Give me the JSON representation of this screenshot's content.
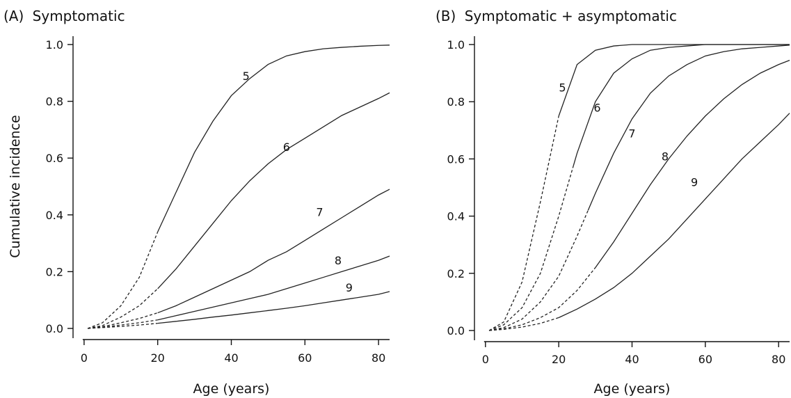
{
  "chart_data": [
    {
      "type": "line",
      "panel_label": "(A)",
      "title": "Symptomatic",
      "xlabel": "Age (years)",
      "ylabel": "Cumulative incidence",
      "xlim": [
        -3,
        83
      ],
      "ylim": [
        0,
        1
      ],
      "x_ticks": [
        0,
        20,
        40,
        60,
        80
      ],
      "y_ticks": [
        "0.0",
        "0.2",
        "0.4",
        "0.6",
        "0.8",
        "1.0"
      ],
      "grid": false,
      "legend": "none",
      "dashed_until_x": 20,
      "series": [
        {
          "name": "5",
          "label_at": [
            44,
            0.89
          ],
          "x": [
            1,
            5,
            10,
            15,
            20,
            25,
            30,
            35,
            40,
            45,
            50,
            55,
            60,
            65,
            70,
            75,
            80,
            83
          ],
          "y": [
            0.0,
            0.02,
            0.08,
            0.18,
            0.34,
            0.48,
            0.62,
            0.73,
            0.82,
            0.88,
            0.93,
            0.96,
            0.975,
            0.985,
            0.99,
            0.994,
            0.997,
            0.998
          ]
        },
        {
          "name": "6",
          "label_at": [
            55,
            0.64
          ],
          "x": [
            1,
            5,
            10,
            15,
            20,
            25,
            30,
            35,
            40,
            45,
            50,
            55,
            60,
            65,
            70,
            75,
            80,
            83
          ],
          "y": [
            0.0,
            0.01,
            0.04,
            0.08,
            0.14,
            0.21,
            0.29,
            0.37,
            0.45,
            0.52,
            0.58,
            0.63,
            0.67,
            0.71,
            0.75,
            0.78,
            0.81,
            0.83
          ]
        },
        {
          "name": "7",
          "label_at": [
            64,
            0.41
          ],
          "x": [
            1,
            5,
            10,
            15,
            20,
            25,
            30,
            35,
            40,
            45,
            50,
            55,
            60,
            65,
            70,
            75,
            80,
            83
          ],
          "y": [
            0.0,
            0.006,
            0.02,
            0.035,
            0.055,
            0.08,
            0.11,
            0.14,
            0.17,
            0.2,
            0.24,
            0.27,
            0.31,
            0.35,
            0.39,
            0.43,
            0.47,
            0.49
          ]
        },
        {
          "name": "8",
          "label_at": [
            69,
            0.24
          ],
          "x": [
            1,
            5,
            10,
            15,
            20,
            25,
            30,
            35,
            40,
            45,
            50,
            55,
            60,
            65,
            70,
            75,
            80,
            83
          ],
          "y": [
            0.0,
            0.004,
            0.012,
            0.02,
            0.03,
            0.045,
            0.06,
            0.075,
            0.09,
            0.105,
            0.12,
            0.14,
            0.16,
            0.18,
            0.2,
            0.22,
            0.24,
            0.255
          ]
        },
        {
          "name": "9",
          "label_at": [
            72,
            0.145
          ],
          "x": [
            1,
            5,
            10,
            15,
            20,
            25,
            30,
            35,
            40,
            45,
            50,
            55,
            60,
            65,
            70,
            75,
            80,
            83
          ],
          "y": [
            0.0,
            0.003,
            0.007,
            0.012,
            0.018,
            0.025,
            0.032,
            0.04,
            0.047,
            0.055,
            0.063,
            0.071,
            0.08,
            0.09,
            0.1,
            0.11,
            0.12,
            0.13
          ]
        }
      ]
    },
    {
      "type": "line",
      "panel_label": "(B)",
      "title": "Symptomatic + asymptomatic",
      "xlabel": "Age (years)",
      "ylabel": "",
      "xlim": [
        -3,
        83
      ],
      "ylim": [
        0,
        1
      ],
      "x_ticks": [
        0,
        20,
        40,
        60,
        80
      ],
      "y_ticks": [
        "0.0",
        "0.2",
        "0.4",
        "0.6",
        "0.8",
        "1.0"
      ],
      "grid": false,
      "legend": "none",
      "series": [
        {
          "name": "5",
          "label_at": [
            21,
            0.85
          ],
          "dashed_until_x": 20,
          "x": [
            1,
            5,
            10,
            15,
            20,
            25,
            30,
            35,
            40,
            45,
            50,
            55,
            60,
            65,
            70,
            75,
            80,
            83
          ],
          "y": [
            0.0,
            0.03,
            0.17,
            0.45,
            0.75,
            0.93,
            0.98,
            0.995,
            1.0,
            1.0,
            1.0,
            1.0,
            1.0,
            1.0,
            1.0,
            1.0,
            1.0,
            1.0
          ]
        },
        {
          "name": "6",
          "label_at": [
            30.5,
            0.78
          ],
          "dashed_until_x": 24,
          "x": [
            1,
            5,
            10,
            15,
            20,
            25,
            30,
            35,
            40,
            45,
            50,
            55,
            60,
            65,
            70,
            75,
            80,
            83
          ],
          "y": [
            0.0,
            0.02,
            0.08,
            0.2,
            0.4,
            0.62,
            0.8,
            0.9,
            0.95,
            0.98,
            0.99,
            0.995,
            1.0,
            1.0,
            1.0,
            1.0,
            1.0,
            1.0
          ]
        },
        {
          "name": "7",
          "label_at": [
            40,
            0.69
          ],
          "dashed_until_x": 28,
          "x": [
            1,
            5,
            10,
            15,
            20,
            25,
            30,
            35,
            40,
            45,
            50,
            55,
            60,
            65,
            70,
            75,
            80,
            83
          ],
          "y": [
            0.0,
            0.01,
            0.04,
            0.1,
            0.19,
            0.33,
            0.48,
            0.62,
            0.74,
            0.83,
            0.89,
            0.93,
            0.96,
            0.975,
            0.985,
            0.99,
            0.995,
            0.998
          ]
        },
        {
          "name": "8",
          "label_at": [
            49,
            0.61
          ],
          "dashed_until_x": 30,
          "x": [
            1,
            5,
            10,
            15,
            20,
            25,
            30,
            35,
            40,
            45,
            50,
            55,
            60,
            65,
            70,
            75,
            80,
            83
          ],
          "y": [
            0.0,
            0.006,
            0.02,
            0.045,
            0.08,
            0.14,
            0.22,
            0.31,
            0.41,
            0.51,
            0.6,
            0.68,
            0.75,
            0.81,
            0.86,
            0.9,
            0.93,
            0.945
          ]
        },
        {
          "name": "9",
          "label_at": [
            57,
            0.52
          ],
          "dashed_until_x": 20,
          "x": [
            1,
            5,
            10,
            15,
            20,
            25,
            30,
            35,
            40,
            45,
            50,
            55,
            60,
            65,
            70,
            75,
            80,
            83
          ],
          "y": [
            0.0,
            0.004,
            0.012,
            0.025,
            0.045,
            0.075,
            0.11,
            0.15,
            0.2,
            0.26,
            0.32,
            0.39,
            0.46,
            0.53,
            0.6,
            0.66,
            0.72,
            0.76
          ]
        }
      ]
    }
  ]
}
